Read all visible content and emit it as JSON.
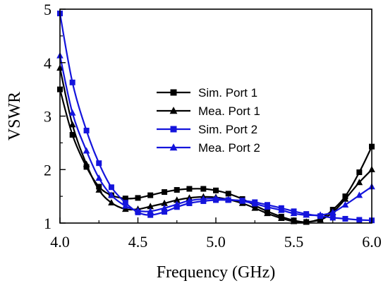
{
  "chart_data": {
    "type": "line",
    "xlabel": "Frequency (GHz)",
    "ylabel": "VSWR",
    "xlim": [
      4.0,
      6.0
    ],
    "ylim": [
      1,
      5
    ],
    "xticks": [
      4.0,
      4.5,
      5.0,
      5.5,
      6.0
    ],
    "xtick_labels": [
      "4.0",
      "4.5",
      "5.0",
      "5.5",
      "6.0"
    ],
    "yticks": [
      1,
      2,
      3,
      4,
      5
    ],
    "ytick_labels": [
      "1",
      "2",
      "3",
      "4",
      "5"
    ],
    "grid": false,
    "legend_position": "center-right",
    "series": [
      {
        "name": "Sim. Port 1",
        "color": "#000000",
        "marker": "square",
        "x": [
          4.0,
          4.08,
          4.17,
          4.25,
          4.33,
          4.42,
          4.5,
          4.58,
          4.67,
          4.75,
          4.83,
          4.92,
          5.0,
          5.08,
          5.17,
          5.25,
          5.33,
          5.42,
          5.5,
          5.58,
          5.67,
          5.75,
          5.83,
          5.92,
          6.0
        ],
        "y": [
          3.5,
          2.65,
          2.05,
          1.68,
          1.52,
          1.46,
          1.47,
          1.52,
          1.58,
          1.62,
          1.64,
          1.64,
          1.61,
          1.55,
          1.45,
          1.33,
          1.22,
          1.12,
          1.05,
          1.02,
          1.08,
          1.25,
          1.5,
          1.95,
          2.43
        ]
      },
      {
        "name": "Mea. Port 1",
        "color": "#000000",
        "marker": "triangle",
        "x": [
          4.0,
          4.08,
          4.17,
          4.25,
          4.33,
          4.42,
          4.5,
          4.58,
          4.67,
          4.75,
          4.83,
          4.92,
          5.0,
          5.08,
          5.17,
          5.25,
          5.33,
          5.42,
          5.5,
          5.58,
          5.67,
          5.75,
          5.83,
          5.92,
          6.0
        ],
        "y": [
          3.9,
          2.84,
          2.1,
          1.62,
          1.38,
          1.26,
          1.26,
          1.31,
          1.37,
          1.43,
          1.47,
          1.49,
          1.48,
          1.44,
          1.37,
          1.28,
          1.18,
          1.09,
          1.03,
          1.02,
          1.06,
          1.2,
          1.45,
          1.76,
          2.0
        ]
      },
      {
        "name": "Sim. Port 2",
        "color": "#1414dc",
        "marker": "square",
        "x": [
          4.0,
          4.08,
          4.17,
          4.25,
          4.33,
          4.42,
          4.5,
          4.58,
          4.67,
          4.75,
          4.83,
          4.92,
          5.0,
          5.08,
          5.17,
          5.25,
          5.33,
          5.42,
          5.5,
          5.58,
          5.67,
          5.75,
          5.83,
          5.92,
          6.0
        ],
        "y": [
          4.92,
          3.63,
          2.73,
          2.12,
          1.67,
          1.38,
          1.2,
          1.15,
          1.21,
          1.3,
          1.37,
          1.41,
          1.43,
          1.43,
          1.42,
          1.39,
          1.34,
          1.28,
          1.22,
          1.17,
          1.13,
          1.1,
          1.08,
          1.06,
          1.05
        ]
      },
      {
        "name": "Mea. Port 2",
        "color": "#1414dc",
        "marker": "triangle",
        "x": [
          4.0,
          4.08,
          4.17,
          4.25,
          4.33,
          4.42,
          4.5,
          4.58,
          4.67,
          4.75,
          4.83,
          4.92,
          5.0,
          5.08,
          5.17,
          5.25,
          5.33,
          5.42,
          5.5,
          5.58,
          5.67,
          5.75,
          5.83,
          5.92,
          6.0
        ],
        "y": [
          4.13,
          3.06,
          2.35,
          1.84,
          1.52,
          1.32,
          1.23,
          1.22,
          1.28,
          1.35,
          1.42,
          1.45,
          1.46,
          1.44,
          1.41,
          1.36,
          1.3,
          1.24,
          1.18,
          1.15,
          1.15,
          1.2,
          1.34,
          1.52,
          1.68
        ]
      }
    ]
  }
}
